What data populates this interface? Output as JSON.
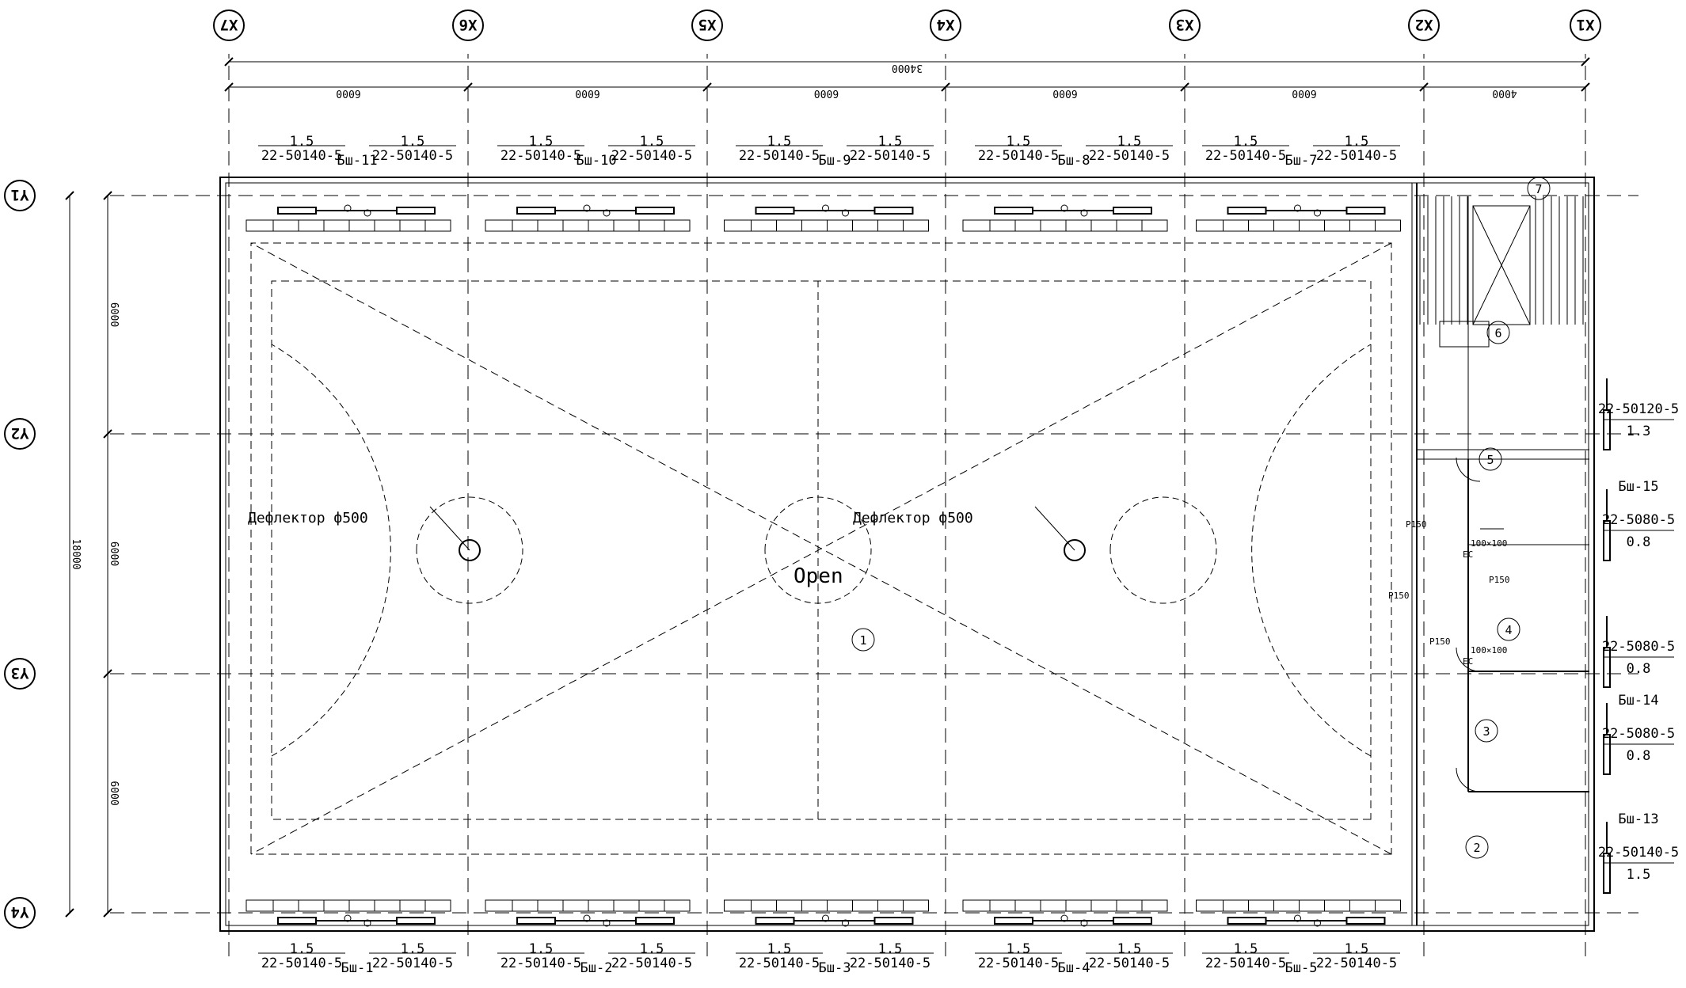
{
  "grid_x": [
    "X1",
    "X2",
    "X3",
    "X4",
    "X5",
    "X6",
    "X7"
  ],
  "grid_y": [
    "Y1",
    "Y2",
    "Y3",
    "Y4"
  ],
  "dims": {
    "overall_x": "34000",
    "spans_x": [
      "4000",
      "6000",
      "6000",
      "6000",
      "6000",
      "6000"
    ],
    "overall_y": "18000",
    "spans_y": [
      "6000",
      "6000",
      "6000"
    ]
  },
  "rooms": [
    "1",
    "2",
    "3",
    "4",
    "5",
    "6",
    "7"
  ],
  "hall_label": "Open",
  "deflectors": [
    "Дефлектор ф500",
    "Дефлектор ф500"
  ],
  "top_units": [
    {
      "tag": "Бш-11",
      "units": [
        {
          "model": "22-50140-5",
          "value": "1.5"
        },
        {
          "model": "22-50140-5",
          "value": "1.5"
        }
      ]
    },
    {
      "tag": "Бш-10",
      "units": [
        {
          "model": "22-50140-5",
          "value": "1.5"
        },
        {
          "model": "22-50140-5",
          "value": "1.5"
        }
      ]
    },
    {
      "tag": "Бш-9",
      "units": [
        {
          "model": "22-50140-5",
          "value": "1.5"
        },
        {
          "model": "22-50140-5",
          "value": "1.5"
        }
      ]
    },
    {
      "tag": "Бш-8",
      "units": [
        {
          "model": "22-50140-5",
          "value": "1.5"
        },
        {
          "model": "22-50140-5",
          "value": "1.5"
        }
      ]
    },
    {
      "tag": "Бш-7",
      "units": [
        {
          "model": "22-50140-5",
          "value": "1.5"
        },
        {
          "model": "22-50140-5",
          "value": "1.5"
        }
      ]
    }
  ],
  "bottom_units": [
    {
      "tag": "Бш-1",
      "units": [
        {
          "model": "22-50140-5",
          "value": "1.5"
        },
        {
          "model": "22-50140-5",
          "value": "1.5"
        }
      ]
    },
    {
      "tag": "Бш-2",
      "units": [
        {
          "model": "22-50140-5",
          "value": "1.5"
        },
        {
          "model": "22-50140-5",
          "value": "1.5"
        }
      ]
    },
    {
      "tag": "Бш-3",
      "units": [
        {
          "model": "22-50140-5",
          "value": "1.5"
        },
        {
          "model": "22-50140-5",
          "value": "1.5"
        }
      ]
    },
    {
      "tag": "Бш-4",
      "units": [
        {
          "model": "22-50140-5",
          "value": "1.5"
        },
        {
          "model": "22-50140-5",
          "value": "1.5"
        }
      ]
    },
    {
      "tag": "Бш-5",
      "units": [
        {
          "model": "22-50140-5",
          "value": "1.5"
        },
        {
          "model": "22-50140-5",
          "value": "1.5"
        }
      ]
    }
  ],
  "side_units": [
    {
      "model": "22-50140-5",
      "value": "1.5",
      "tag": "Бш-13"
    },
    {
      "model": "22-5080-5",
      "value": "0.8",
      "tag": "Бш-14"
    },
    {
      "model": "22-5080-5",
      "value": "0.8",
      "tag": ""
    },
    {
      "model": "22-5080-5",
      "value": "0.8",
      "tag": "Бш-15"
    },
    {
      "model": "22-50120-5",
      "value": "1.3",
      "tag": ""
    }
  ],
  "fixtures": {
    "ec": [
      "EC",
      "EC"
    ],
    "duct": [
      "100×100",
      "100×100"
    ],
    "valve": [
      "P150",
      "P150",
      "P150",
      "P150"
    ]
  }
}
